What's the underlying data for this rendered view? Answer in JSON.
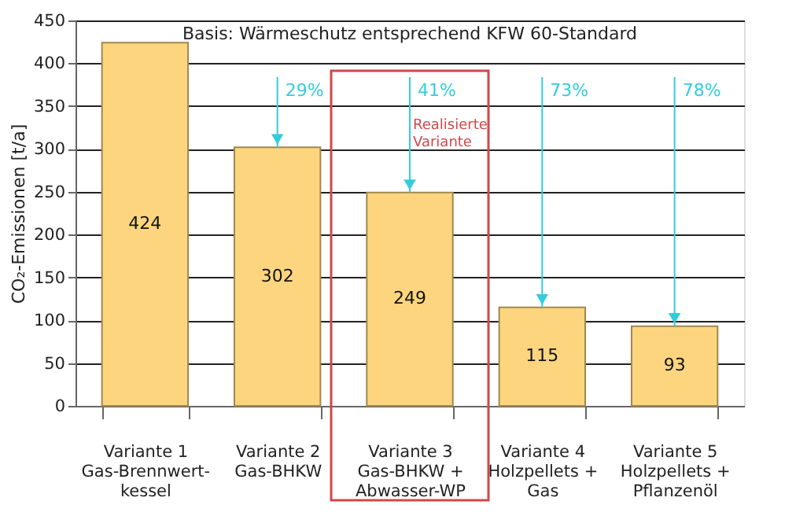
{
  "chart_data": {
    "type": "bar",
    "categories": [
      "Variante 1\nGas-Brennwert-\nkessel",
      "Variante 2\nGas-BHKW",
      "Variante 3\nGas-BHKW +\nAbwasser-WP",
      "Variante 4\nHolzpellets +\nGas",
      "Variante 5\nHolzpellets +\nPflanzenöl"
    ],
    "values": [
      424,
      302,
      249,
      115,
      93
    ],
    "color": "#fdd57e",
    "ylabel": "CO₂-Emissionen [t/a]",
    "ylim": [
      0,
      450
    ],
    "yticks": [
      0,
      50,
      100,
      150,
      200,
      250,
      300,
      350,
      400,
      450
    ],
    "grid": "y",
    "data_labels": true,
    "annotations": [
      "Basis: Wärmeschutz entsprechend KFW 60-Standard",
      "Realisierte\nVariante",
      {
        "text": "29%",
        "x": "Variante 2\nGas-BHKW",
        "y": 302
      },
      {
        "text": "41%",
        "x": "Variante 3\nGas-BHKW +\nAbwasser-WP",
        "y": 249
      },
      {
        "text": "73%",
        "x": "Variante 4\nHolzpellets +\nGas",
        "y": 115
      },
      {
        "text": "78%",
        "x": "Variante 5\nHolzpellets +\nPflanzenöl",
        "y": 93
      }
    ]
  }
}
